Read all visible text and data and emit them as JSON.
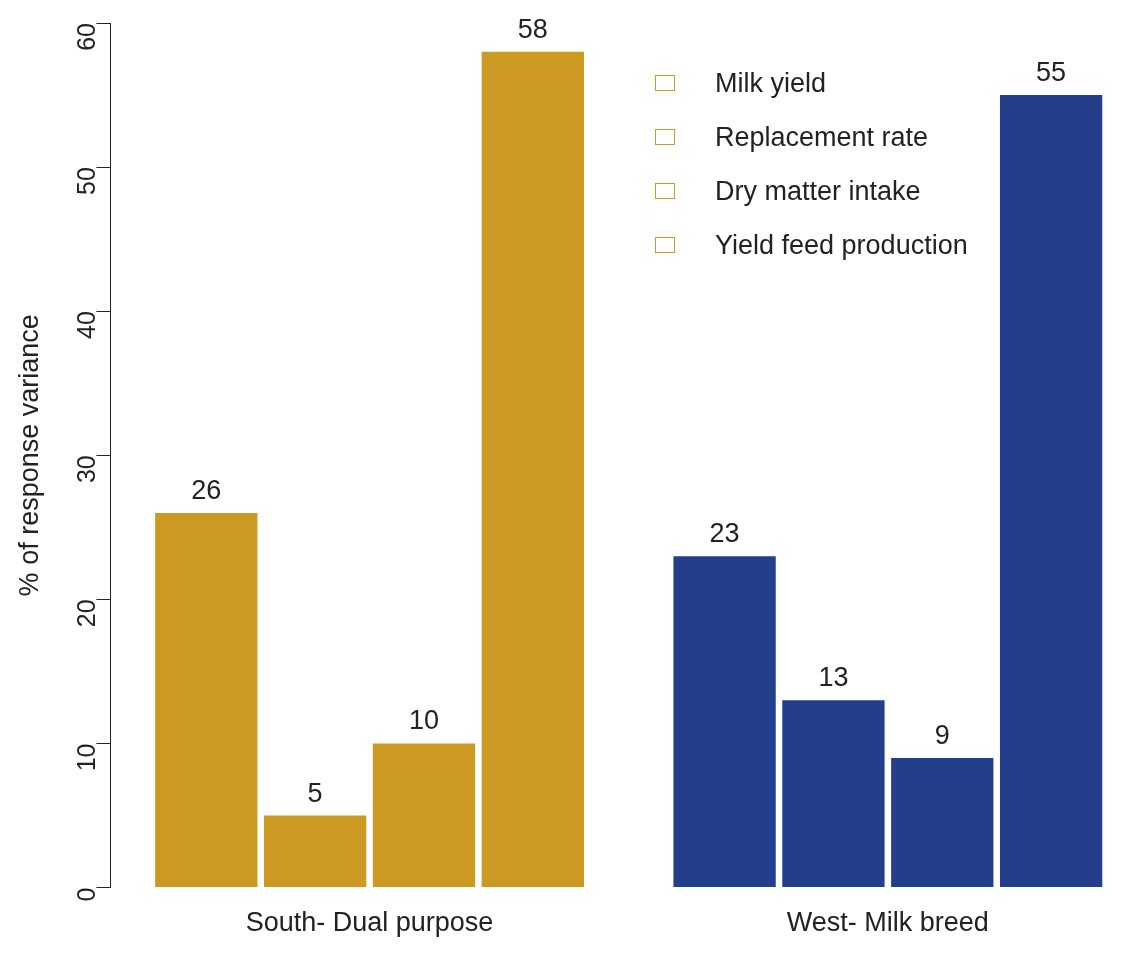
{
  "chart_data": {
    "type": "bar",
    "ylabel": "% of response variance",
    "categories": [
      "South- Dual purpose",
      "West- Milk breed"
    ],
    "series": [
      {
        "name": "Milk yield",
        "colors": [
          "#cc9a22",
          "#233f8c"
        ],
        "values": [
          26,
          23
        ]
      },
      {
        "name": "Replacement rate",
        "colors": [
          "#cc9a22",
          "#233f8c"
        ],
        "values": [
          5,
          13
        ]
      },
      {
        "name": "Dry matter intake",
        "colors": [
          "#cc9a22",
          "#233f8c"
        ],
        "values": [
          10,
          9
        ]
      },
      {
        "name": "Yield feed production",
        "colors": [
          "#cc9a22",
          "#233f8c"
        ],
        "values": [
          58,
          55
        ]
      }
    ],
    "ylim": [
      0,
      60
    ],
    "yticks": [
      0,
      10,
      20,
      30,
      40,
      50,
      60
    ],
    "grid": false,
    "legend": "top right",
    "data_labels": true
  }
}
